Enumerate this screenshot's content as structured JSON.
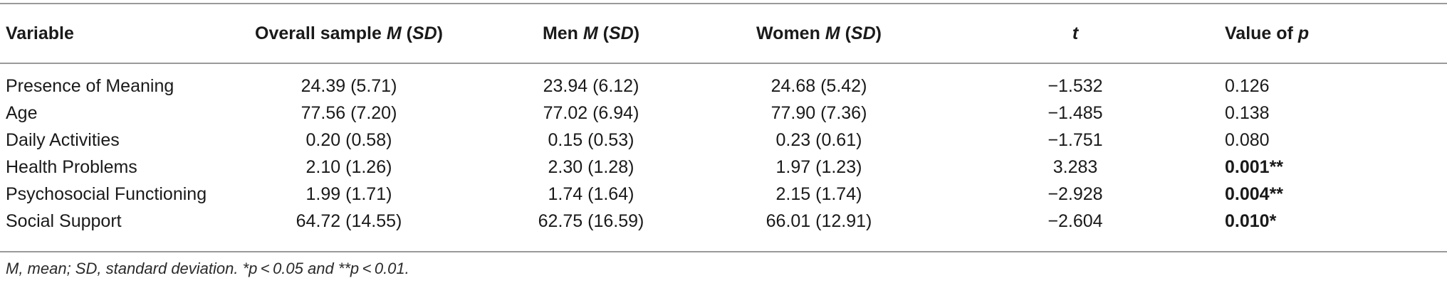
{
  "table": {
    "headers": {
      "variable": "Variable",
      "overall_prefix": "Overall sample ",
      "overall_m": "M",
      "overall_sd": "SD",
      "men_prefix": "Men ",
      "men_m": "M",
      "men_sd": "SD",
      "women_prefix": "Women ",
      "women_m": "M",
      "women_sd": "SD",
      "t": "t",
      "p_prefix": "Value of ",
      "p": "p"
    },
    "rows": [
      {
        "variable": "Presence of Meaning",
        "overall": "24.39 (5.71)",
        "men": "23.94 (6.12)",
        "women": "24.68 (5.42)",
        "t": "−1.532",
        "p": "0.126",
        "stars": "",
        "sig": false
      },
      {
        "variable": "Age",
        "overall": "77.56 (7.20)",
        "men": "77.02 (6.94)",
        "women": "77.90 (7.36)",
        "t": "−1.485",
        "p": "0.138",
        "stars": "",
        "sig": false
      },
      {
        "variable": "Daily Activities",
        "overall": "0.20 (0.58)",
        "men": "0.15 (0.53)",
        "women": "0.23 (0.61)",
        "t": "−1.751",
        "p": "0.080",
        "stars": "",
        "sig": false
      },
      {
        "variable": "Health Problems",
        "overall": "2.10 (1.26)",
        "men": "2.30 (1.28)",
        "women": "1.97 (1.23)",
        "t": "3.283",
        "p": "0.001",
        "stars": "**",
        "sig": true
      },
      {
        "variable": "Psychosocial Functioning",
        "overall": "1.99 (1.71)",
        "men": "1.74 (1.64)",
        "women": "2.15 (1.74)",
        "t": "−2.928",
        "p": "0.004",
        "stars": "**",
        "sig": true
      },
      {
        "variable": "Social Support",
        "overall": "64.72 (14.55)",
        "men": "62.75 (16.59)",
        "women": "66.01 (12.91)",
        "t": "−2.604",
        "p": "0.010",
        "stars": "*",
        "sig": true
      }
    ],
    "footnote": "M, mean; SD, standard deviation. *p < 0.05 and **p < 0.01."
  }
}
